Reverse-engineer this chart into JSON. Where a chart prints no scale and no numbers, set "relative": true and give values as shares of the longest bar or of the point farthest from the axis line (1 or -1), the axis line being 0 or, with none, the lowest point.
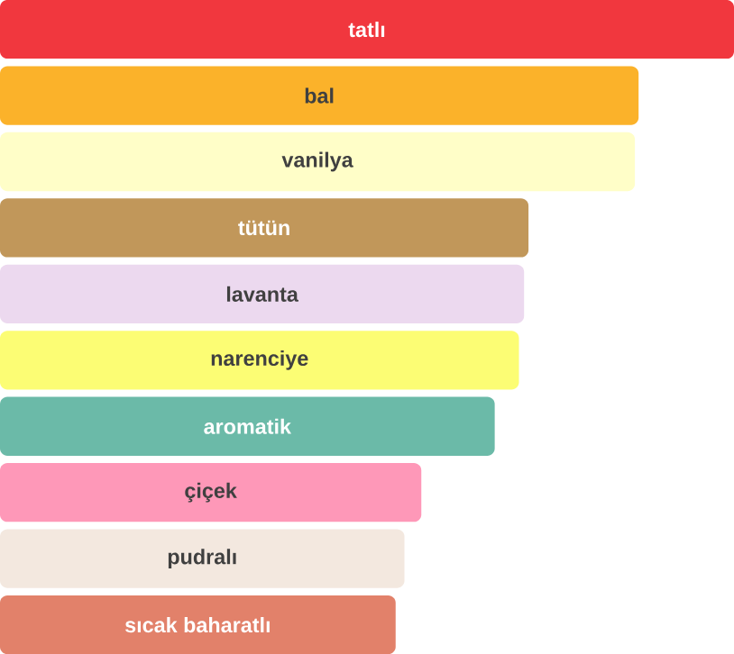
{
  "chart_data": {
    "type": "bar",
    "orientation": "horizontal",
    "relative": true,
    "categories": [
      "tatlı",
      "bal",
      "vanilya",
      "tütün",
      "lavanta",
      "narenciye",
      "aromatik",
      "çiçek",
      "pudralı",
      "sıcak baharatlı"
    ],
    "values": [
      1,
      0.87,
      0.865,
      0.72,
      0.714,
      0.707,
      0.674,
      0.574,
      0.551,
      0.539
    ],
    "colors": [
      "#f1373e",
      "#fbb22a",
      "#fffec8",
      "#c1975a",
      "#ecd9ef",
      "#fcfd74",
      "#6bbaa8",
      "#fe98b8",
      "#f3e8df",
      "#e2816a"
    ]
  }
}
